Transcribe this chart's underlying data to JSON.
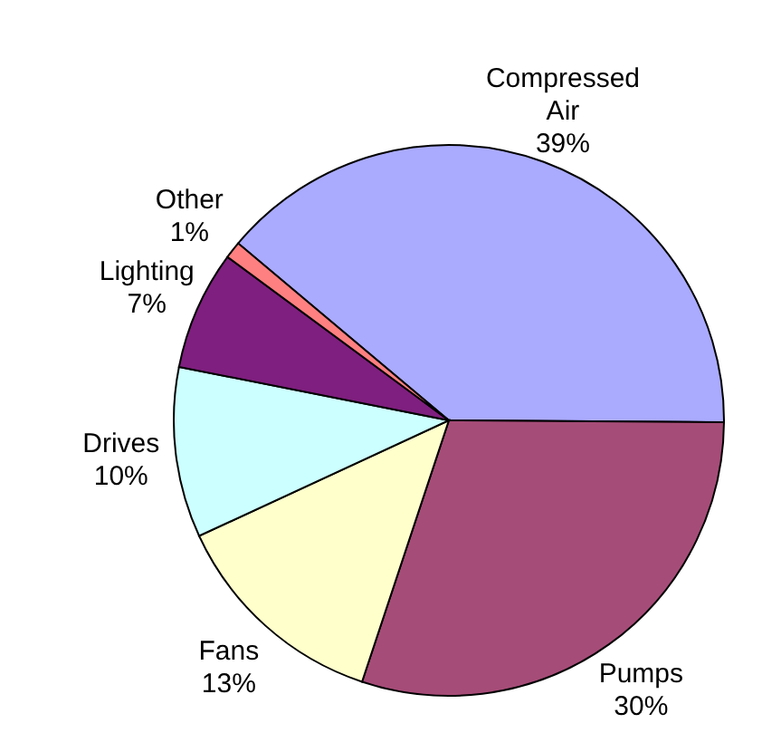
{
  "chart_data": {
    "type": "pie",
    "categories": [
      "Compressed Air",
      "Pumps",
      "Fans",
      "Drives",
      "Lighting",
      "Other"
    ],
    "values": [
      39,
      30,
      13,
      10,
      7,
      1
    ],
    "value_labels": [
      "39%",
      "30%",
      "13%",
      "10%",
      "7%",
      "1%"
    ],
    "colors": [
      "#aaaaff",
      "#a64c78",
      "#ffffcc",
      "#ccffff",
      "#7f1f7f",
      "#ff8080"
    ],
    "legend": false
  }
}
